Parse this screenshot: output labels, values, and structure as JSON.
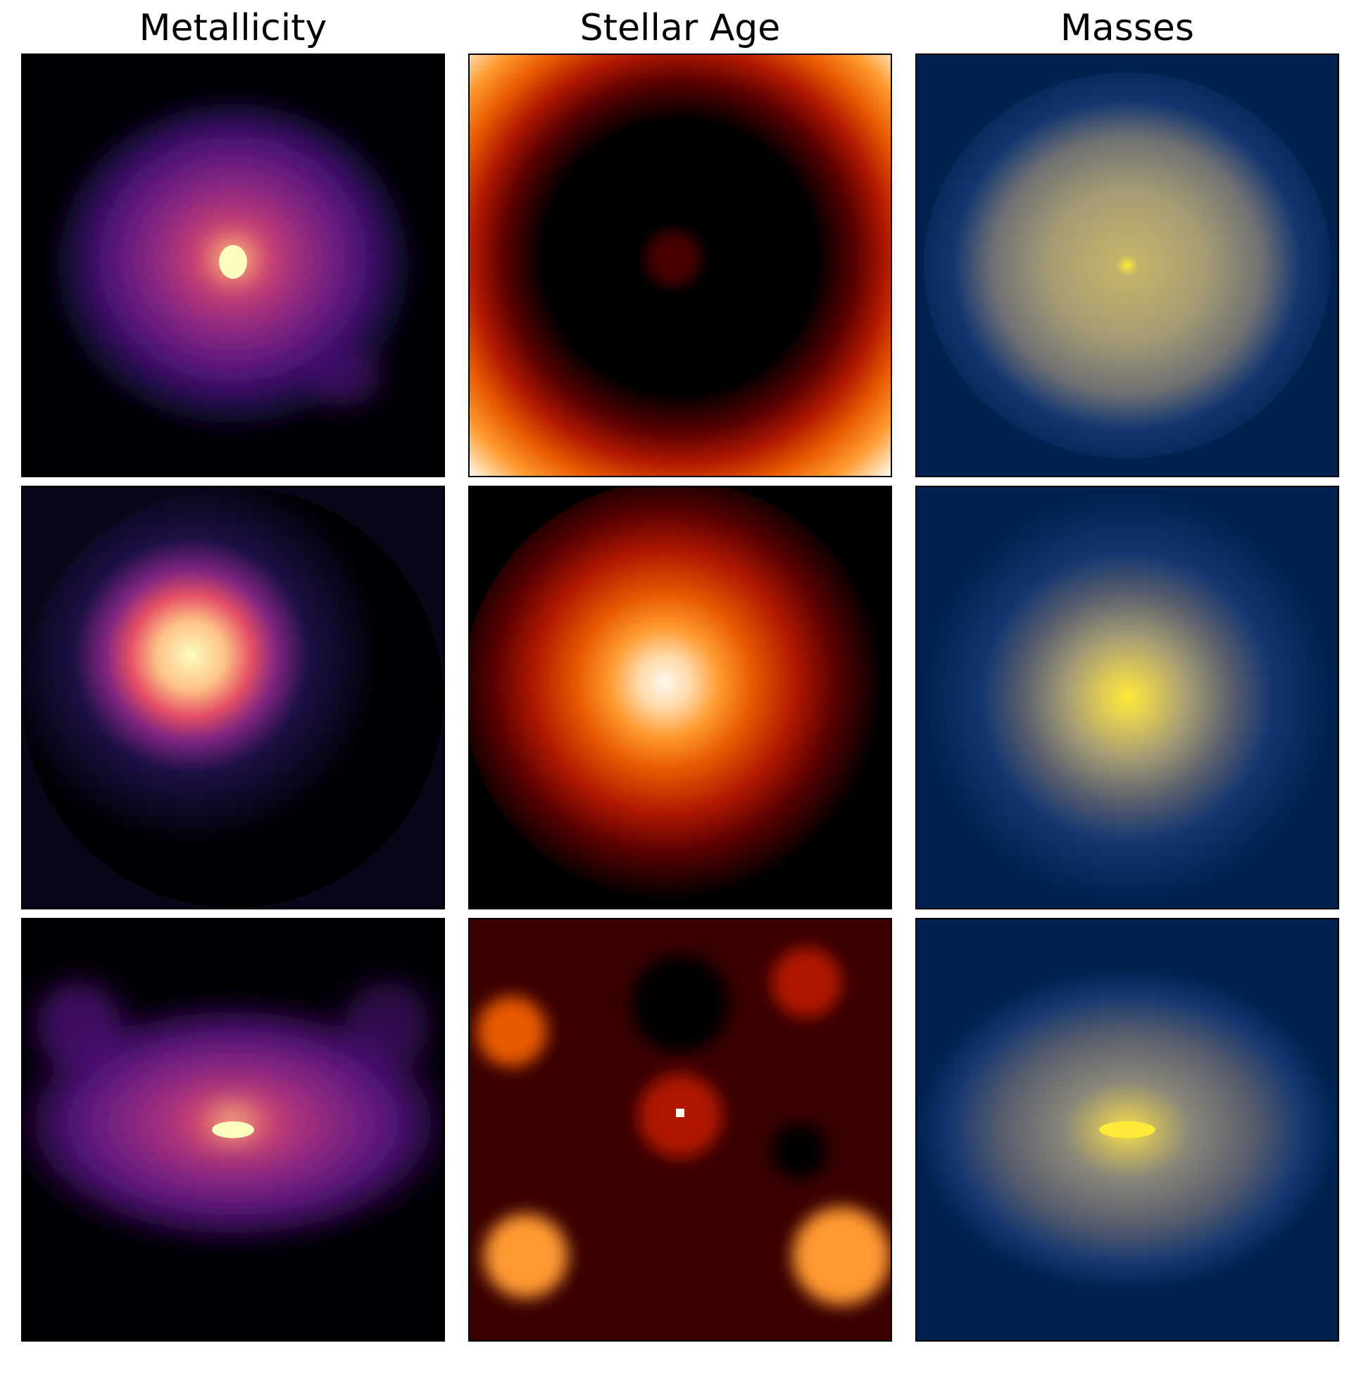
{
  "figure": {
    "column_titles": [
      "Metallicity",
      "Stellar Age",
      "Masses"
    ]
  },
  "colors": {
    "metallicity_colormap": [
      "#000004",
      "#1c1044",
      "#4f127b",
      "#812581",
      "#b5367a",
      "#e55064",
      "#fb8761",
      "#fec287",
      "#fcfdbf"
    ],
    "stellar_age_colormap": [
      "#000000",
      "#5a0000",
      "#b01800",
      "#e85a00",
      "#ff9a30",
      "#ffd9a8",
      "#fff8ef"
    ],
    "masses_colormap": [
      "#00224e",
      "#123570",
      "#3b496c",
      "#575d6d",
      "#707173",
      "#8a8779",
      "#a59c74",
      "#c3b369",
      "#e1cc55",
      "#fee838"
    ]
  }
}
